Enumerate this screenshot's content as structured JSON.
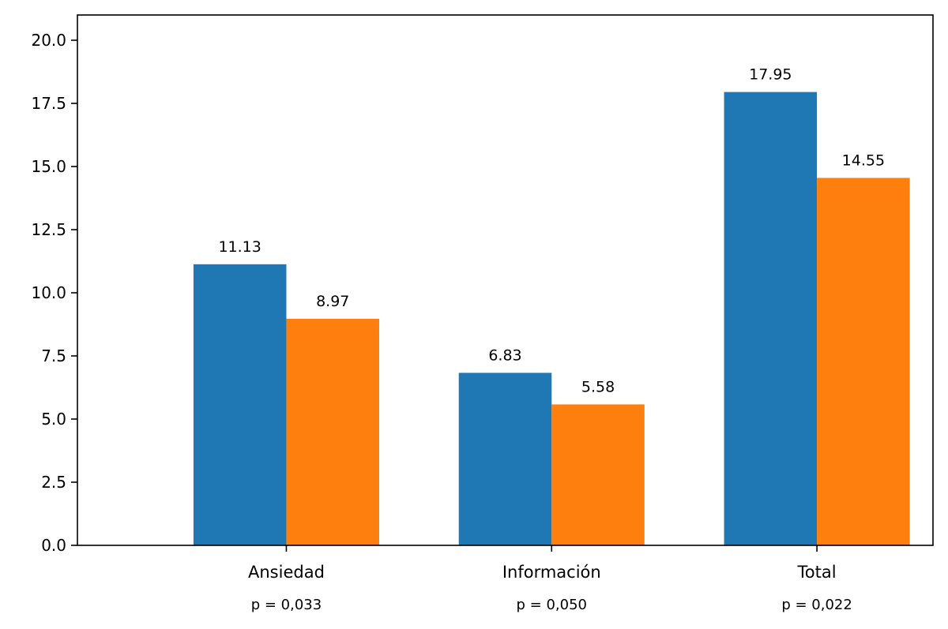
{
  "chart_data": {
    "type": "bar",
    "categories": [
      "Ansiedad",
      "Información",
      "Total"
    ],
    "sublabels": [
      "p = 0,033",
      "p = 0,050",
      "p = 0,022"
    ],
    "series": [
      {
        "values": [
          11.13,
          6.83,
          17.95
        ],
        "color": "#1f77b4"
      },
      {
        "values": [
          8.97,
          5.58,
          14.55
        ],
        "color": "#ff7f0e"
      }
    ],
    "data_labels": [
      [
        "11.13",
        "6.83",
        "17.95"
      ],
      [
        "8.97",
        "5.58",
        "14.55"
      ]
    ],
    "yticks": [
      "0.0",
      "2.5",
      "5.0",
      "7.5",
      "10.0",
      "12.5",
      "15.0",
      "17.5",
      "20.0"
    ],
    "ylim": [
      0,
      21
    ],
    "title": "",
    "xlabel": "",
    "ylabel": "",
    "grid": false,
    "legend": false
  }
}
